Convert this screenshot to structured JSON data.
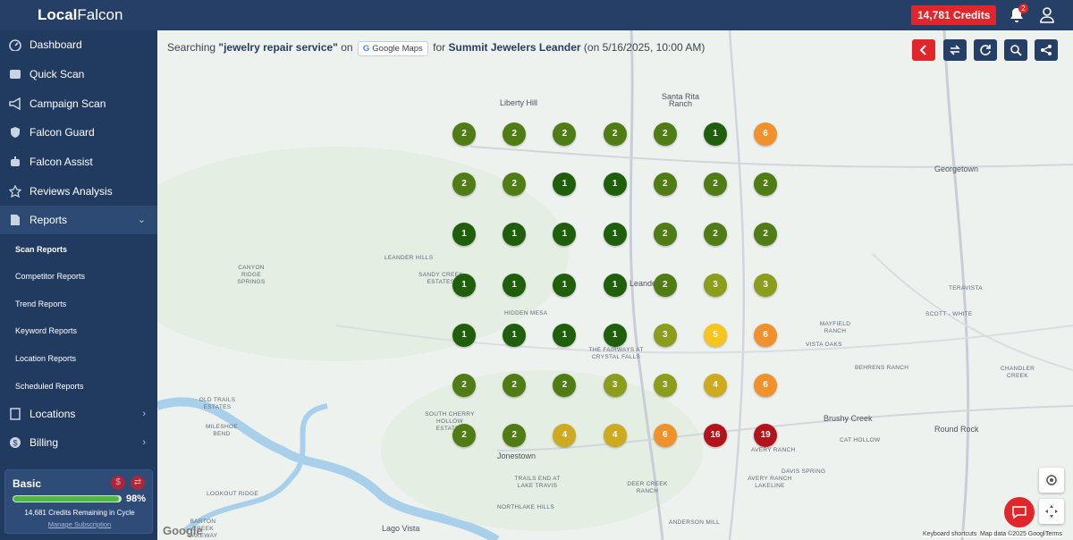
{
  "header": {
    "logo_bold": "Local",
    "logo_rest": "Falcon",
    "credits": "14,781 Credits",
    "notifications": "2"
  },
  "sidebar": {
    "items": [
      "Dashboard",
      "Quick Scan",
      "Campaign Scan",
      "Falcon Guard",
      "Falcon Assist",
      "Reviews Analysis",
      "Reports"
    ],
    "reports_submenu": [
      "Scan Reports",
      "Competitor Reports",
      "Trend Reports",
      "Keyword Reports",
      "Location Reports",
      "Scheduled Reports"
    ],
    "bottom_items": [
      "Locations",
      "Billing"
    ],
    "plan": {
      "name": "Basic",
      "percent": "98%",
      "remaining": "14,681 Credits Remaining in Cycle",
      "manage": "Manage Subscription"
    }
  },
  "search": {
    "prefix": "Searching",
    "keyword": "\"jewelry repair service\"",
    "on": "on",
    "platform": "Google Maps",
    "for": "for",
    "business": "Summit Jewelers Leander",
    "date": "(on 5/16/2025, 10:00 AM)"
  },
  "grid": {
    "rows": [
      [
        2,
        2,
        2,
        2,
        2,
        1,
        6
      ],
      [
        2,
        2,
        1,
        1,
        2,
        2,
        2
      ],
      [
        1,
        1,
        1,
        1,
        2,
        2,
        2
      ],
      [
        1,
        1,
        1,
        1,
        2,
        3,
        3
      ],
      [
        1,
        1,
        1,
        1,
        3,
        5,
        6
      ],
      [
        2,
        2,
        2,
        3,
        3,
        4,
        6
      ],
      [
        2,
        2,
        4,
        4,
        6,
        16,
        19
      ]
    ]
  },
  "map": {
    "labels": [
      "Liberty Hill",
      "Santa Rita Ranch",
      "Georgetown",
      "Leander",
      "Hidden Mesa",
      "The Fairways at Crystal Falls",
      "Leander Hills",
      "Canyon Ridge Springs",
      "Sandy Creek Estates",
      "Teravista",
      "Scott - White",
      "Mayfield Ranch",
      "Vista Oaks",
      "Behrens Ranch",
      "Chandler Creek",
      "Brushy Creek",
      "Round Rock",
      "Cat Hollow",
      "Avery Ranch",
      "Davis Spring",
      "Jonestown",
      "Lago Vista",
      "Old Trails Estates",
      "Mileshoe Bend",
      "South Cherry Hollow Estates",
      "Lookout Ridge",
      "Trails End at Lake Travis",
      "Northlake Hills",
      "Deer Creek Ranch",
      "Avery Ranch Lakeline",
      "Anderson Mill",
      "Barton Creek Lakeway"
    ],
    "attribution": {
      "google": "Google",
      "shortcuts": "Keyboard shortcuts",
      "data": "Map data ©2025 Google",
      "terms": "Terms"
    }
  }
}
